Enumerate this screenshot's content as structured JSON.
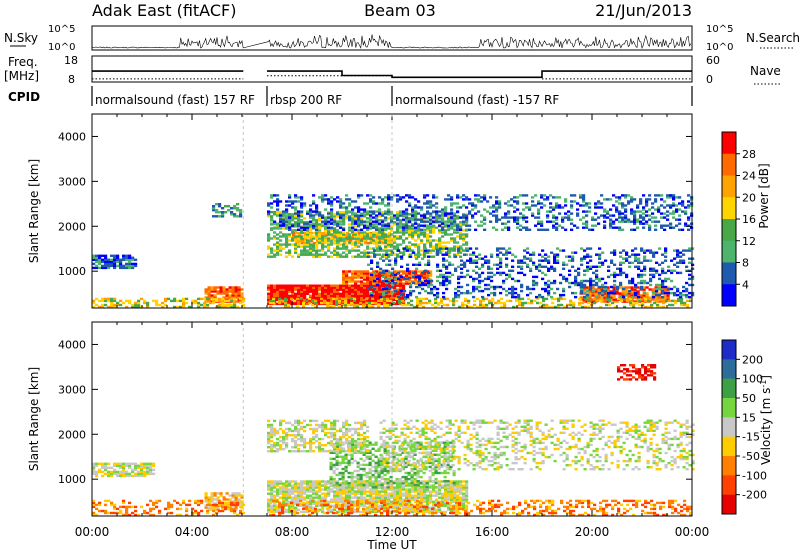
{
  "header": {
    "title": "Adak East (fitACF)",
    "beam": "Beam 03",
    "date": "21/Jun/2013"
  },
  "chart_data": [
    {
      "type": "line",
      "panel": "noise",
      "left_label": "N.Sky",
      "right_label": "N.Search",
      "yticks_left": [
        "10^5",
        "10^0"
      ],
      "yticks_right": [
        "10^5",
        "10^0"
      ],
      "gap_hours": [
        6.05,
        7.0
      ],
      "bursts": [
        [
          3.5,
          6.0
        ],
        [
          7.0,
          12.0
        ],
        [
          15.5,
          24.0
        ]
      ]
    },
    {
      "type": "line",
      "panel": "frequency",
      "left_label": "Freq.",
      "left_unit": "[MHz]",
      "right_label": "Nave",
      "yticks_left": [
        "18",
        "8"
      ],
      "yticks_right": [
        "60",
        "0"
      ],
      "freq_ylim": [
        8,
        18
      ],
      "freq_steps": [
        {
          "x0": 0.0,
          "x1": 6.05,
          "y": 12.2
        },
        {
          "x0": 7.0,
          "x1": 10.0,
          "y": 12.2
        },
        {
          "x0": 10.0,
          "x1": 12.0,
          "y": 10.5
        },
        {
          "x0": 12.0,
          "x1": 18.0,
          "y": 9.8
        },
        {
          "x0": 18.0,
          "x1": 24.0,
          "y": 12.2
        }
      ],
      "nave_steps": [
        {
          "x0": 0.0,
          "x1": 6.05,
          "y": 9.2
        },
        {
          "x0": 7.0,
          "x1": 12.0,
          "y": 10.4
        },
        {
          "x0": 18.0,
          "x1": 24.0,
          "y": 9.2
        }
      ]
    },
    {
      "type": "table",
      "panel": "cpid",
      "label": "CPID",
      "segments": [
        {
          "start": 0.0,
          "end": 7.0,
          "label": "normalsound (fast) 157 RF"
        },
        {
          "start": 7.0,
          "end": 12.0,
          "label": "rbsp 200 RF"
        },
        {
          "start": 12.0,
          "end": 24.0,
          "label": "normalsound (fast) -157 RF"
        }
      ]
    },
    {
      "type": "heatmap",
      "panel": "power",
      "ylabel": "Slant Range [km]",
      "yticks": [
        1000,
        2000,
        3000,
        4000
      ],
      "ylim": [
        180,
        4500
      ],
      "xlim": [
        0,
        24
      ],
      "gap_hours": [
        6.05,
        7.0
      ],
      "colorbar": {
        "label": "Power [dB]",
        "ticks": [
          "28",
          "24",
          "20",
          "16",
          "12",
          "8",
          "4"
        ],
        "colors": [
          "#ff0000",
          "#ff6a00",
          "#ffa300",
          "#ffd500",
          "#48a848",
          "#4db36d",
          "#1e5aad",
          "#0000ff"
        ]
      },
      "regions": [
        {
          "t0": 0.0,
          "t1": 1.8,
          "r0": 1050,
          "r1": 1350,
          "density": 0.75,
          "level": 6
        },
        {
          "t0": 4.5,
          "t1": 6.0,
          "r0": 300,
          "r1": 650,
          "density": 0.8,
          "level": 1
        },
        {
          "t0": 4.8,
          "t1": 6.0,
          "r0": 2200,
          "r1": 2500,
          "density": 0.5,
          "level": 5
        },
        {
          "t0": 7.0,
          "t1": 12.5,
          "r0": 250,
          "r1": 700,
          "density": 0.95,
          "level": 0
        },
        {
          "t0": 10.0,
          "t1": 13.5,
          "r0": 700,
          "r1": 1000,
          "density": 0.9,
          "level": 1
        },
        {
          "t0": 8.0,
          "t1": 12.0,
          "r0": 1600,
          "r1": 1850,
          "density": 0.8,
          "level": 2
        },
        {
          "t0": 7.0,
          "t1": 15.0,
          "r0": 1300,
          "r1": 2300,
          "density": 0.55,
          "level": 4
        },
        {
          "t0": 7.0,
          "t1": 24.0,
          "r0": 1900,
          "r1": 2700,
          "density": 0.35,
          "level": 6
        },
        {
          "t0": 19.5,
          "t1": 23.0,
          "r0": 300,
          "r1": 650,
          "density": 0.8,
          "level": 1
        },
        {
          "t0": 0.0,
          "t1": 24.0,
          "r0": 180,
          "r1": 400,
          "density": 0.45,
          "level": 3
        },
        {
          "t0": 11.0,
          "t1": 24.0,
          "r0": 400,
          "r1": 1500,
          "density": 0.3,
          "level": 6
        }
      ]
    },
    {
      "type": "heatmap",
      "panel": "velocity",
      "ylabel": "Slant Range [km]",
      "yticks": [
        1000,
        2000,
        3000,
        4000
      ],
      "ylim": [
        180,
        4500
      ],
      "xlim": [
        0,
        24
      ],
      "xticks": [
        "00:00",
        "04:00",
        "08:00",
        "12:00",
        "16:00",
        "20:00",
        "00:00"
      ],
      "xlabel": "Time UT",
      "gap_hours": [
        6.05,
        7.0
      ],
      "colorbar": {
        "label": "Velocity [m s",
        "label_sup": "-1",
        "label_end": "]",
        "ticks": [
          "200",
          "100",
          "50",
          "15",
          "-15",
          "-50",
          "-100",
          "-200"
        ],
        "colors": [
          "#1e2cc8",
          "#2e6d9a",
          "#3ea045",
          "#76d640",
          "#c8c8c8",
          "#ffcc00",
          "#ff8000",
          "#ff4000",
          "#e60000"
        ]
      },
      "regions": [
        {
          "t0": 0.0,
          "t1": 2.5,
          "r0": 1050,
          "r1": 1350,
          "density": 0.75,
          "level": 4
        },
        {
          "t0": 4.5,
          "t1": 6.0,
          "r0": 300,
          "r1": 700,
          "density": 0.7,
          "level": 5
        },
        {
          "t0": 7.0,
          "t1": 15.0,
          "r0": 250,
          "r1": 950,
          "density": 0.85,
          "level": 4
        },
        {
          "t0": 9.5,
          "t1": 14.5,
          "r0": 800,
          "r1": 1800,
          "density": 0.5,
          "level": 3
        },
        {
          "t0": 7.0,
          "t1": 11.0,
          "r0": 1600,
          "r1": 2300,
          "density": 0.5,
          "level": 4
        },
        {
          "t0": 11.5,
          "t1": 24.0,
          "r0": 1200,
          "r1": 2300,
          "density": 0.3,
          "level": 4
        },
        {
          "t0": 21.0,
          "t1": 22.5,
          "r0": 3200,
          "r1": 3550,
          "density": 0.6,
          "level": 8
        },
        {
          "t0": 0.0,
          "t1": 24.0,
          "r0": 180,
          "r1": 500,
          "density": 0.35,
          "level": 6
        }
      ]
    }
  ]
}
